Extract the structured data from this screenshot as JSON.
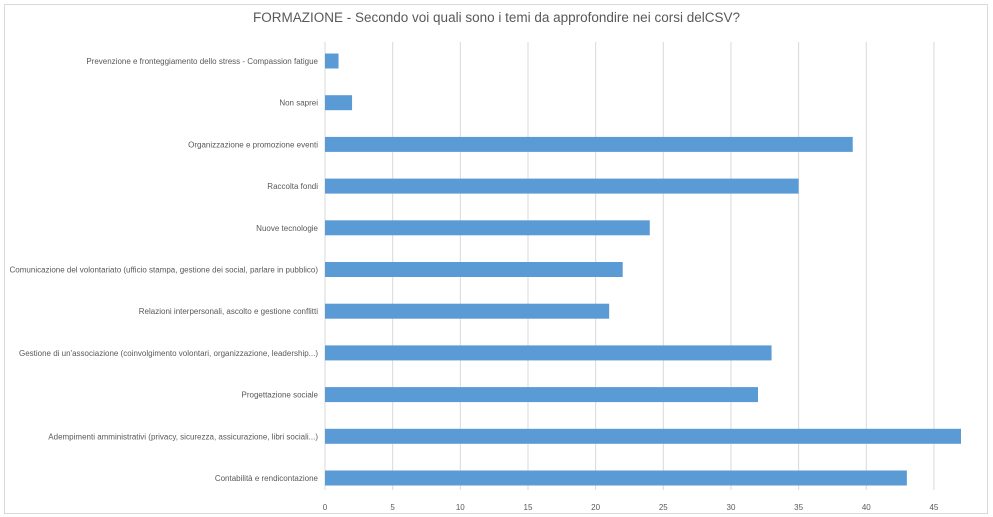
{
  "chart_data": {
    "type": "bar",
    "orientation": "horizontal",
    "title": "FORMAZIONE - Secondo voi quali sono i temi da approfondire nei corsi delCSV?",
    "categories": [
      "Prevenzione e fronteggiamento dello stress - Compassion fatigue",
      "Non saprei",
      "Organizzazione e promozione eventi",
      "Raccolta fondi",
      "Nuove tecnologie",
      "Comunicazione del volontariato (ufficio stampa, gestione dei social, parlare in pubblico)",
      "Relazioni interpersonali, ascolto e gestione conflitti",
      "Gestione di un'associazione (coinvolgimento volontari, organizzazione, leadership...)",
      "Progettazione sociale",
      "Adempimenti amministrativi (privacy, sicurezza, assicurazione, libri sociali...)",
      "Contabilità e rendicontazione"
    ],
    "values": [
      1,
      2,
      39,
      35,
      24,
      22,
      21,
      33,
      32,
      47,
      43
    ],
    "xlim": [
      0,
      47
    ],
    "xticks": [
      0,
      5,
      10,
      15,
      20,
      25,
      30,
      35,
      40,
      45
    ],
    "grid": "vertical",
    "bar_color": "#5b9bd5",
    "grid_color": "#d9d9d9",
    "text_color": "#595959"
  }
}
